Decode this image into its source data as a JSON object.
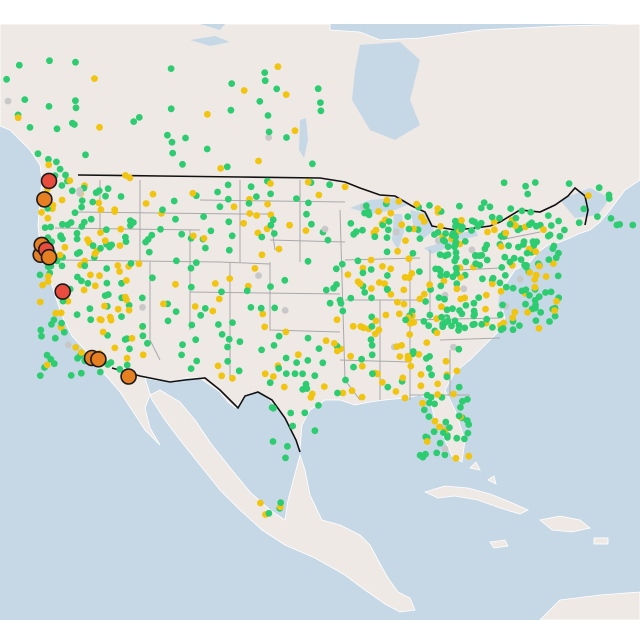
{
  "map": {
    "basemap": {
      "water_color": "#c6d8e6",
      "land_color": "#efe9e6",
      "country_border_color": "#111111",
      "state_border_color": "#a9a9a9",
      "outline_color": "#ffffff"
    },
    "legend_colors": {
      "good": "#2ecc71",
      "moderate": "#f1c40f",
      "no_data": "#c8c8c8",
      "unhealthy_sensitive": "#e67e22",
      "unhealthy": "#e74c3c"
    },
    "highlighted_stations": [
      {
        "lon": -123.3,
        "lat": 48.6,
        "level": "unhealthy"
      },
      {
        "lon": -123.8,
        "lat": 47.1,
        "level": "unhealthy_sensitive"
      },
      {
        "lon": -124.2,
        "lat": 42.6,
        "level": "unhealthy_sensitive"
      },
      {
        "lon": -124.1,
        "lat": 43.4,
        "level": "unhealthy_sensitive"
      },
      {
        "lon": -123.6,
        "lat": 43.0,
        "level": "unhealthy"
      },
      {
        "lon": -123.3,
        "lat": 42.4,
        "level": "unhealthy_sensitive"
      },
      {
        "lon": -121.8,
        "lat": 39.6,
        "level": "unhealthy"
      },
      {
        "lon": -118.6,
        "lat": 34.2,
        "level": "unhealthy_sensitive"
      },
      {
        "lon": -117.9,
        "lat": 34.1,
        "level": "unhealthy_sensitive"
      },
      {
        "lon": -114.6,
        "lat": 32.7,
        "level": "unhealthy_sensitive"
      }
    ]
  }
}
